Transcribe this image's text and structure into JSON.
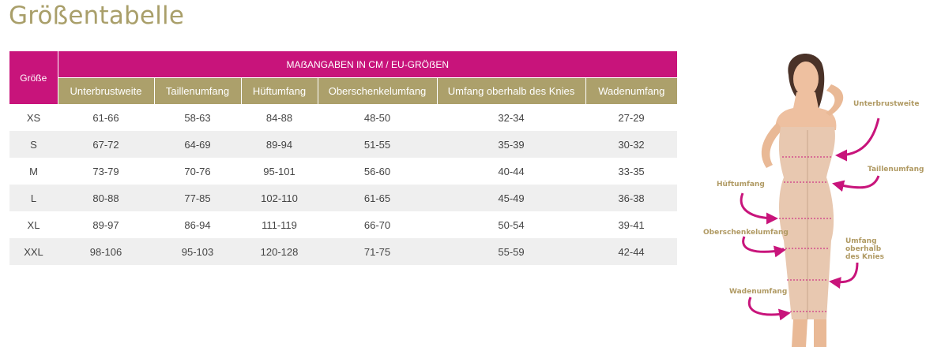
{
  "title": "Größentabelle",
  "table": {
    "corner_header": "Größe",
    "group_header": "MAẞANGABEN IN CM / EU-GRÖẞEN",
    "columns": [
      "Unterbrustweite",
      "Taillenumfang",
      "Hüftumfang",
      "Oberschenkelumfang",
      "Umfang oberhalb des Knies",
      "Wadenumfang"
    ],
    "rows": [
      {
        "size": "XS",
        "values": [
          "61-66",
          "58-63",
          "84-88",
          "48-50",
          "32-34",
          "27-29"
        ]
      },
      {
        "size": "S",
        "values": [
          "67-72",
          "64-69",
          "89-94",
          "51-55",
          "35-39",
          "30-32"
        ]
      },
      {
        "size": "M",
        "values": [
          "73-79",
          "70-76",
          "95-101",
          "56-60",
          "40-44",
          "33-35"
        ]
      },
      {
        "size": "L",
        "values": [
          "80-88",
          "77-85",
          "102-110",
          "61-65",
          "45-49",
          "36-38"
        ]
      },
      {
        "size": "XL",
        "values": [
          "89-97",
          "86-94",
          "111-119",
          "66-70",
          "50-54",
          "39-41"
        ]
      },
      {
        "size": "XXL",
        "values": [
          "98-106",
          "95-103",
          "120-128",
          "71-75",
          "55-59",
          "42-44"
        ]
      }
    ]
  },
  "figure": {
    "labels": {
      "unterbrustweite": "Unterbrustweite",
      "taillenumfang": "Taillenumfang",
      "hueftumfang": "Hüftumfang",
      "oberschenkelumfang": "Oberschenkelumfang",
      "knie_line1": "Umfang",
      "knie_line2": "oberhalb",
      "knie_line3": "des Knies",
      "wadenumfang": "Wadenumfang"
    },
    "colors": {
      "arrow": "#c8147b",
      "label": "#b09a63",
      "garment": "#e8c8b0",
      "skin": "#e9b996"
    }
  }
}
